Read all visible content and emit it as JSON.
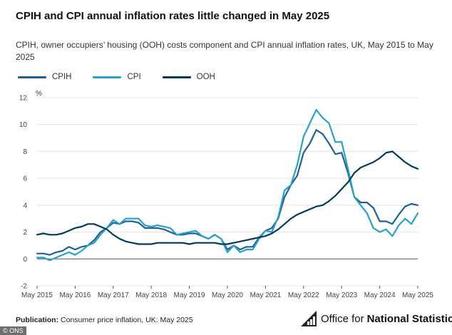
{
  "header": {
    "title": "CPIH and CPI annual inflation rates little changed in May 2025",
    "subtitle": "CPIH, owner occupiers’ housing (OOH) costs component and CPI annual inflation rates, UK, May 2015 to May 2025"
  },
  "footer": {
    "publication_label": "Publication:",
    "publication_text": "Consumer price inflation, UK: May 2025",
    "logo_prefix": "Office for",
    "logo_strong": "National Statistics",
    "credit": "© ONS"
  },
  "chart_data": {
    "type": "line",
    "ylabel": "%",
    "ylim": [
      -2,
      12
    ],
    "yticks": [
      -2,
      0,
      2,
      4,
      6,
      8,
      10,
      12
    ],
    "xlim": [
      2015.333,
      2025.333
    ],
    "xticks": [
      {
        "x": 2015.333,
        "label": "May 2015"
      },
      {
        "x": 2016.333,
        "label": "May 2016"
      },
      {
        "x": 2017.333,
        "label": "May 2017"
      },
      {
        "x": 2018.333,
        "label": "May 2018"
      },
      {
        "x": 2019.333,
        "label": "May 2019"
      },
      {
        "x": 2020.333,
        "label": "May 2020"
      },
      {
        "x": 2021.333,
        "label": "May 2021"
      },
      {
        "x": 2022.333,
        "label": "May 2022"
      },
      {
        "x": 2023.333,
        "label": "May 2023"
      },
      {
        "x": 2024.333,
        "label": "May 2024"
      },
      {
        "x": 2025.333,
        "label": "May 2025"
      }
    ],
    "grid": "horizontal",
    "legend_position": "top-left",
    "series": [
      {
        "name": "CPIH",
        "color": "#206095",
        "points": [
          [
            2015.333,
            0.4
          ],
          [
            2015.5,
            0.4
          ],
          [
            2015.667,
            0.3
          ],
          [
            2015.833,
            0.5
          ],
          [
            2016.0,
            0.6
          ],
          [
            2016.167,
            0.9
          ],
          [
            2016.333,
            0.7
          ],
          [
            2016.5,
            0.9
          ],
          [
            2016.667,
            1.0
          ],
          [
            2016.833,
            1.4
          ],
          [
            2017.0,
            2.0
          ],
          [
            2017.167,
            2.3
          ],
          [
            2017.333,
            2.7
          ],
          [
            2017.5,
            2.6
          ],
          [
            2017.667,
            2.8
          ],
          [
            2017.833,
            2.8
          ],
          [
            2018.0,
            2.7
          ],
          [
            2018.167,
            2.3
          ],
          [
            2018.333,
            2.3
          ],
          [
            2018.5,
            2.3
          ],
          [
            2018.667,
            2.2
          ],
          [
            2018.833,
            2.0
          ],
          [
            2019.0,
            1.8
          ],
          [
            2019.167,
            1.8
          ],
          [
            2019.333,
            1.9
          ],
          [
            2019.5,
            1.9
          ],
          [
            2019.667,
            1.7
          ],
          [
            2019.833,
            1.5
          ],
          [
            2020.0,
            1.8
          ],
          [
            2020.167,
            1.5
          ],
          [
            2020.333,
            0.7
          ],
          [
            2020.5,
            1.0
          ],
          [
            2020.667,
            0.7
          ],
          [
            2020.833,
            0.9
          ],
          [
            2021.0,
            0.9
          ],
          [
            2021.167,
            1.6
          ],
          [
            2021.333,
            2.1
          ],
          [
            2021.5,
            2.3
          ],
          [
            2021.667,
            3.0
          ],
          [
            2021.833,
            4.6
          ],
          [
            2022.0,
            5.5
          ],
          [
            2022.167,
            6.2
          ],
          [
            2022.333,
            7.9
          ],
          [
            2022.5,
            8.6
          ],
          [
            2022.667,
            9.6
          ],
          [
            2022.833,
            9.3
          ],
          [
            2023.0,
            8.6
          ],
          [
            2023.167,
            7.8
          ],
          [
            2023.333,
            7.9
          ],
          [
            2023.5,
            6.4
          ],
          [
            2023.667,
            4.6
          ],
          [
            2023.833,
            4.2
          ],
          [
            2024.0,
            4.2
          ],
          [
            2024.167,
            3.8
          ],
          [
            2024.333,
            2.8
          ],
          [
            2024.5,
            2.8
          ],
          [
            2024.667,
            2.6
          ],
          [
            2024.833,
            3.3
          ],
          [
            2025.0,
            3.9
          ],
          [
            2025.167,
            4.1
          ],
          [
            2025.333,
            4.0
          ]
        ]
      },
      {
        "name": "CPI",
        "color": "#27a0cc",
        "points": [
          [
            2015.333,
            0.1
          ],
          [
            2015.5,
            0.1
          ],
          [
            2015.667,
            -0.1
          ],
          [
            2015.833,
            0.1
          ],
          [
            2016.0,
            0.3
          ],
          [
            2016.167,
            0.5
          ],
          [
            2016.333,
            0.3
          ],
          [
            2016.5,
            0.6
          ],
          [
            2016.667,
            1.0
          ],
          [
            2016.833,
            1.2
          ],
          [
            2017.0,
            1.8
          ],
          [
            2017.167,
            2.3
          ],
          [
            2017.333,
            2.9
          ],
          [
            2017.5,
            2.6
          ],
          [
            2017.667,
            3.0
          ],
          [
            2017.833,
            3.0
          ],
          [
            2018.0,
            3.0
          ],
          [
            2018.167,
            2.5
          ],
          [
            2018.333,
            2.4
          ],
          [
            2018.5,
            2.5
          ],
          [
            2018.667,
            2.4
          ],
          [
            2018.833,
            2.3
          ],
          [
            2019.0,
            1.8
          ],
          [
            2019.167,
            1.9
          ],
          [
            2019.333,
            2.0
          ],
          [
            2019.5,
            2.1
          ],
          [
            2019.667,
            1.7
          ],
          [
            2019.833,
            1.5
          ],
          [
            2020.0,
            1.8
          ],
          [
            2020.167,
            1.5
          ],
          [
            2020.333,
            0.5
          ],
          [
            2020.5,
            1.0
          ],
          [
            2020.667,
            0.5
          ],
          [
            2020.833,
            0.7
          ],
          [
            2021.0,
            0.7
          ],
          [
            2021.167,
            1.5
          ],
          [
            2021.333,
            2.1
          ],
          [
            2021.5,
            2.0
          ],
          [
            2021.667,
            3.1
          ],
          [
            2021.833,
            5.1
          ],
          [
            2022.0,
            5.5
          ],
          [
            2022.167,
            7.0
          ],
          [
            2022.333,
            9.1
          ],
          [
            2022.5,
            10.1
          ],
          [
            2022.667,
            11.1
          ],
          [
            2022.833,
            10.5
          ],
          [
            2023.0,
            10.1
          ],
          [
            2023.167,
            8.7
          ],
          [
            2023.333,
            8.7
          ],
          [
            2023.5,
            6.7
          ],
          [
            2023.667,
            4.6
          ],
          [
            2023.833,
            4.0
          ],
          [
            2024.0,
            3.4
          ],
          [
            2024.167,
            2.3
          ],
          [
            2024.333,
            2.0
          ],
          [
            2024.5,
            2.2
          ],
          [
            2024.667,
            1.7
          ],
          [
            2024.833,
            2.5
          ],
          [
            2025.0,
            3.0
          ],
          [
            2025.167,
            2.6
          ],
          [
            2025.333,
            3.4
          ]
        ]
      },
      {
        "name": "OOH",
        "color": "#003c57",
        "points": [
          [
            2015.333,
            1.8
          ],
          [
            2015.5,
            1.9
          ],
          [
            2015.667,
            1.8
          ],
          [
            2015.833,
            1.8
          ],
          [
            2016.0,
            1.9
          ],
          [
            2016.167,
            2.1
          ],
          [
            2016.333,
            2.3
          ],
          [
            2016.5,
            2.4
          ],
          [
            2016.667,
            2.6
          ],
          [
            2016.833,
            2.6
          ],
          [
            2017.0,
            2.4
          ],
          [
            2017.167,
            2.2
          ],
          [
            2017.333,
            1.8
          ],
          [
            2017.5,
            1.5
          ],
          [
            2017.667,
            1.3
          ],
          [
            2017.833,
            1.2
          ],
          [
            2018.0,
            1.1
          ],
          [
            2018.167,
            1.1
          ],
          [
            2018.333,
            1.1
          ],
          [
            2018.5,
            1.2
          ],
          [
            2018.667,
            1.2
          ],
          [
            2018.833,
            1.2
          ],
          [
            2019.0,
            1.2
          ],
          [
            2019.167,
            1.2
          ],
          [
            2019.333,
            1.1
          ],
          [
            2019.5,
            1.2
          ],
          [
            2019.667,
            1.2
          ],
          [
            2019.833,
            1.2
          ],
          [
            2020.0,
            1.2
          ],
          [
            2020.167,
            1.1
          ],
          [
            2020.333,
            1.1
          ],
          [
            2020.5,
            1.2
          ],
          [
            2020.667,
            1.3
          ],
          [
            2020.833,
            1.4
          ],
          [
            2021.0,
            1.5
          ],
          [
            2021.167,
            1.6
          ],
          [
            2021.333,
            1.7
          ],
          [
            2021.5,
            1.9
          ],
          [
            2021.667,
            2.2
          ],
          [
            2021.833,
            2.6
          ],
          [
            2022.0,
            3.0
          ],
          [
            2022.167,
            3.3
          ],
          [
            2022.333,
            3.5
          ],
          [
            2022.5,
            3.7
          ],
          [
            2022.667,
            3.9
          ],
          [
            2022.833,
            4.0
          ],
          [
            2023.0,
            4.3
          ],
          [
            2023.167,
            4.7
          ],
          [
            2023.333,
            5.2
          ],
          [
            2023.5,
            5.7
          ],
          [
            2023.667,
            6.4
          ],
          [
            2023.833,
            6.8
          ],
          [
            2024.0,
            7.0
          ],
          [
            2024.167,
            7.2
          ],
          [
            2024.333,
            7.5
          ],
          [
            2024.5,
            7.9
          ],
          [
            2024.667,
            8.0
          ],
          [
            2024.833,
            7.6
          ],
          [
            2025.0,
            7.2
          ],
          [
            2025.167,
            6.9
          ],
          [
            2025.333,
            6.7
          ]
        ]
      }
    ]
  }
}
